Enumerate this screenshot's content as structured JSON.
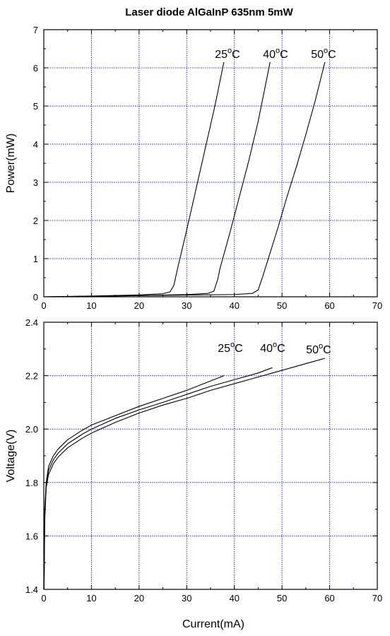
{
  "figure_title": "Laser diode AlGaInP 635nm 5mW",
  "colors": {
    "grid": "#2233cc",
    "curve": "#000000",
    "frame": "#000000"
  },
  "chart_data": [
    {
      "type": "line",
      "title": "",
      "xlabel": "",
      "ylabel": "Power(mW)",
      "xlim": [
        0,
        70
      ],
      "ylim": [
        0,
        7
      ],
      "xticks": [
        0,
        10,
        20,
        30,
        40,
        50,
        60,
        70
      ],
      "yticks": [
        0,
        1,
        2,
        3,
        4,
        5,
        6,
        7
      ],
      "grid": true,
      "grid_style": "dotted",
      "series": [
        {
          "name": "25°C",
          "label_main": "25",
          "label_sup": "o",
          "label_unit": "C",
          "x": [
            0,
            10,
            20,
            25,
            26.5,
            27.3,
            28,
            30,
            32,
            34,
            36,
            37.8
          ],
          "y": [
            0,
            0.02,
            0.05,
            0.08,
            0.13,
            0.3,
            0.7,
            1.75,
            2.85,
            3.95,
            5.05,
            6.15
          ]
        },
        {
          "name": "40°C",
          "label_main": "40",
          "label_sup": "o",
          "label_unit": "C",
          "x": [
            0,
            20,
            30,
            34.5,
            35.7,
            36.5,
            37,
            39,
            41,
            43,
            45,
            47.5
          ],
          "y": [
            0,
            0.03,
            0.06,
            0.09,
            0.15,
            0.45,
            0.75,
            1.65,
            2.6,
            3.55,
            4.6,
            6.15
          ]
        },
        {
          "name": "50°C",
          "label_main": "50",
          "label_sup": "o",
          "label_unit": "C",
          "x": [
            0,
            20,
            40,
            43.8,
            45,
            46,
            47,
            49,
            51,
            53,
            55,
            57,
            59
          ],
          "y": [
            0,
            0.03,
            0.06,
            0.09,
            0.18,
            0.55,
            0.95,
            1.75,
            2.6,
            3.4,
            4.25,
            5.15,
            6.15
          ]
        }
      ]
    },
    {
      "type": "line",
      "title": "",
      "xlabel": "Current(mA)",
      "ylabel": "Voltage(V)",
      "xlim": [
        0,
        70
      ],
      "ylim": [
        1.4,
        2.4
      ],
      "xticks": [
        0,
        10,
        20,
        30,
        40,
        50,
        60,
        70
      ],
      "yticks": [
        1.4,
        1.6,
        1.8,
        2.0,
        2.2,
        2.4
      ],
      "grid": true,
      "grid_style": "dotted",
      "series": [
        {
          "name": "25°C",
          "label_main": "25",
          "label_sup": "o",
          "label_unit": "C",
          "x": [
            0.05,
            0.2,
            0.5,
            1,
            2,
            3,
            5,
            8,
            10,
            15,
            20,
            25,
            30,
            35,
            37.8
          ],
          "y": [
            1.4,
            1.7,
            1.8,
            1.86,
            1.9,
            1.925,
            1.96,
            1.995,
            2.015,
            2.05,
            2.085,
            2.115,
            2.145,
            2.18,
            2.2
          ]
        },
        {
          "name": "40°C",
          "label_main": "40",
          "label_sup": "o",
          "label_unit": "C",
          "x": [
            0.05,
            0.2,
            0.5,
            1,
            2,
            3,
            5,
            8,
            10,
            15,
            20,
            25,
            30,
            35,
            40,
            45,
            48
          ],
          "y": [
            1.4,
            1.68,
            1.79,
            1.845,
            1.885,
            1.91,
            1.945,
            1.98,
            2.0,
            2.04,
            2.072,
            2.1,
            2.13,
            2.16,
            2.185,
            2.21,
            2.23
          ]
        },
        {
          "name": "50°C",
          "label_main": "50",
          "label_sup": "o",
          "label_unit": "C",
          "x": [
            0.05,
            0.2,
            0.5,
            1,
            2,
            3,
            5,
            8,
            10,
            15,
            20,
            25,
            30,
            35,
            40,
            45,
            50,
            55,
            59
          ],
          "y": [
            1.4,
            1.66,
            1.78,
            1.83,
            1.87,
            1.895,
            1.93,
            1.965,
            1.985,
            2.025,
            2.06,
            2.09,
            2.115,
            2.145,
            2.17,
            2.195,
            2.22,
            2.245,
            2.265
          ]
        }
      ]
    }
  ]
}
